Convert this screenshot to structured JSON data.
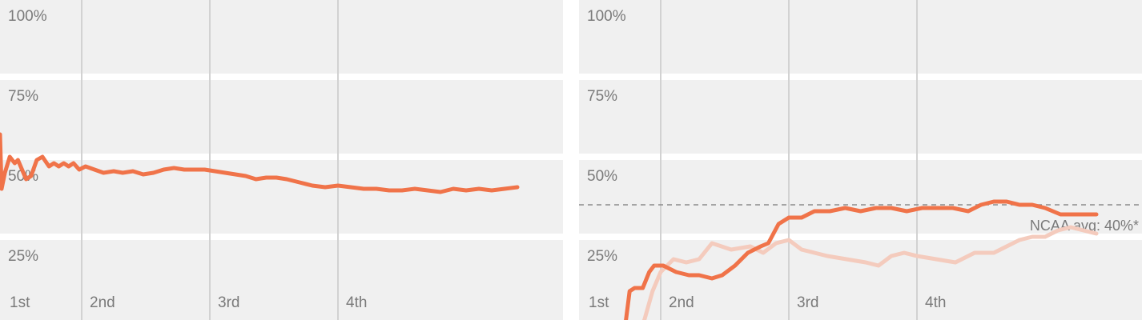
{
  "chart_data": [
    {
      "type": "line",
      "y_ticks": [
        "100%",
        "75%",
        "50%",
        "25%"
      ],
      "x_ticks": [
        "1st",
        "2nd",
        "3rd",
        "4th"
      ],
      "ylim": [
        0,
        1
      ],
      "xlim": [
        0,
        4.4
      ],
      "grid": true,
      "colors": {
        "band": "#f0f0f0",
        "grid": "#d2d2d2",
        "series": [
          "#f07349"
        ]
      },
      "series": [
        {
          "x": [
            0,
            0.02,
            0.06,
            0.12,
            0.18,
            0.22,
            0.27,
            0.32,
            0.38,
            0.45,
            0.52,
            0.6,
            0.66,
            0.72,
            0.78,
            0.84,
            0.9,
            0.97,
            1.03,
            1.1,
            1.17,
            1.25,
            1.32,
            1.4,
            1.48,
            1.56,
            1.64,
            1.72,
            1.8,
            1.88,
            1.96,
            2.04,
            2.12,
            2.2,
            2.28,
            2.36,
            2.44,
            2.52,
            2.6,
            2.7,
            2.8,
            2.9,
            3.0,
            3.1,
            3.2,
            3.3,
            3.4,
            3.5,
            3.6,
            3.7,
            3.8,
            3.9,
            4.0,
            4.1,
            4.2,
            4.3,
            4.4
          ],
          "y": [
            0.63,
            0.46,
            0.51,
            0.56,
            0.54,
            0.55,
            0.52,
            0.49,
            0.5,
            0.55,
            0.56,
            0.53,
            0.54,
            0.53,
            0.54,
            0.53,
            0.54,
            0.52,
            0.53,
            0.52,
            0.51,
            0.515,
            0.51,
            0.515,
            0.505,
            0.51,
            0.52,
            0.525,
            0.52,
            0.52,
            0.52,
            0.515,
            0.51,
            0.505,
            0.5,
            0.49,
            0.495,
            0.495,
            0.49,
            0.48,
            0.47,
            0.465,
            0.47,
            0.465,
            0.46,
            0.46,
            0.455,
            0.455,
            0.46,
            0.455,
            0.45,
            0.46,
            0.455,
            0.46,
            0.455,
            0.46,
            0.465
          ]
        }
      ]
    },
    {
      "type": "line",
      "y_ticks": [
        "100%",
        "75%",
        "50%",
        "25%"
      ],
      "x_ticks": [
        "1st",
        "2nd",
        "3rd",
        "4th"
      ],
      "ylim": [
        0,
        1
      ],
      "xlim": [
        0,
        4.4
      ],
      "grid": true,
      "reference_line": {
        "value": 0.4,
        "label": "NCAA avg: 40%*"
      },
      "colors": {
        "band": "#f0f0f0",
        "grid": "#d2d2d2",
        "series": [
          "#f07349",
          "#f4cbbd"
        ]
      },
      "series": [
        {
          "x": [
            0,
            0.3,
            0.55,
            0.62,
            0.68,
            0.78,
            0.86,
            0.92,
            1.02,
            1.12,
            1.22,
            1.3,
            1.4,
            1.48,
            1.58,
            1.68,
            1.78,
            1.84,
            1.92,
            2.0,
            2.1,
            2.2,
            2.32,
            2.44,
            2.56,
            2.68,
            2.8,
            2.92,
            3.04,
            3.16,
            3.28,
            3.4,
            3.5,
            3.6,
            3.7,
            3.8,
            3.9,
            4.0,
            4.12,
            4.24,
            4.4
          ],
          "y": [
            0.0,
            0.0,
            0.0,
            0.14,
            0.15,
            0.15,
            0.2,
            0.22,
            0.22,
            0.2,
            0.19,
            0.19,
            0.18,
            0.19,
            0.22,
            0.26,
            0.28,
            0.29,
            0.35,
            0.37,
            0.37,
            0.39,
            0.39,
            0.4,
            0.39,
            0.4,
            0.4,
            0.39,
            0.4,
            0.4,
            0.4,
            0.39,
            0.41,
            0.42,
            0.42,
            0.41,
            0.41,
            0.4,
            0.38,
            0.38,
            0.38
          ]
        },
        {
          "x": [
            0,
            0.5,
            0.7,
            0.8,
            0.9,
            1.0,
            1.1,
            1.2,
            1.3,
            1.4,
            1.55,
            1.7,
            1.8,
            1.9,
            2.0,
            2.1,
            2.2,
            2.3,
            2.45,
            2.6,
            2.7,
            2.8,
            2.9,
            3.0,
            3.15,
            3.3,
            3.45,
            3.6,
            3.7,
            3.8,
            3.9,
            4.0,
            4.1,
            4.2,
            4.3,
            4.4
          ],
          "y": [
            0.0,
            0.0,
            0.0,
            0.05,
            0.14,
            0.2,
            0.24,
            0.23,
            0.24,
            0.29,
            0.27,
            0.28,
            0.26,
            0.29,
            0.3,
            0.27,
            0.26,
            0.25,
            0.24,
            0.23,
            0.22,
            0.25,
            0.26,
            0.25,
            0.24,
            0.23,
            0.26,
            0.26,
            0.28,
            0.3,
            0.31,
            0.31,
            0.33,
            0.34,
            0.33,
            0.32
          ]
        }
      ]
    }
  ]
}
